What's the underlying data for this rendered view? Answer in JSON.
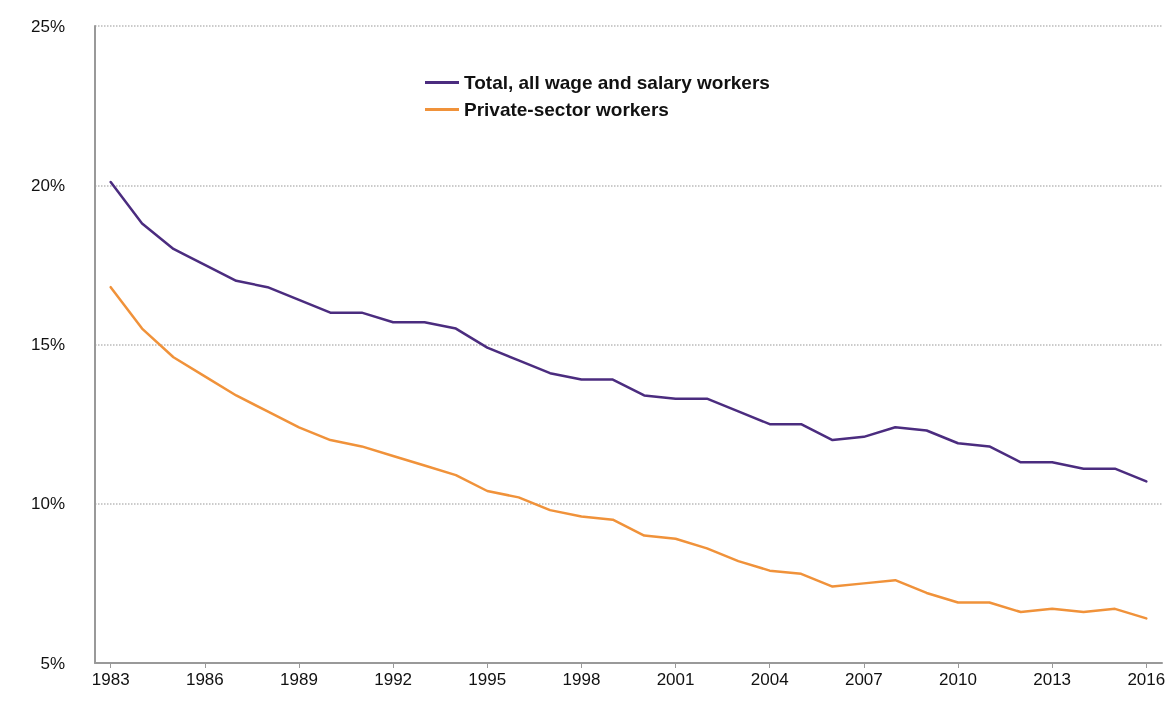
{
  "chart_data": {
    "type": "line",
    "x": [
      1983,
      1984,
      1985,
      1986,
      1987,
      1988,
      1989,
      1990,
      1991,
      1992,
      1993,
      1994,
      1995,
      1996,
      1997,
      1998,
      1999,
      2000,
      2001,
      2002,
      2003,
      2004,
      2005,
      2006,
      2007,
      2008,
      2009,
      2010,
      2011,
      2012,
      2013,
      2014,
      2015,
      2016
    ],
    "series": [
      {
        "name": "Total, all wage and salary workers",
        "color": "#4b2c7f",
        "values": [
          20.1,
          18.8,
          18.0,
          17.5,
          17.0,
          16.8,
          16.4,
          16.0,
          16.0,
          15.7,
          15.7,
          15.5,
          14.9,
          14.5,
          14.1,
          13.9,
          13.9,
          13.4,
          13.3,
          13.3,
          12.9,
          12.5,
          12.5,
          12.0,
          12.1,
          12.4,
          12.3,
          11.9,
          11.8,
          11.3,
          11.3,
          11.1,
          11.1,
          10.7
        ]
      },
      {
        "name": "Private-sector workers",
        "color": "#f0923a",
        "values": [
          16.8,
          15.5,
          14.6,
          14.0,
          13.4,
          12.9,
          12.4,
          12.0,
          11.8,
          11.5,
          11.2,
          10.9,
          10.4,
          10.2,
          9.8,
          9.6,
          9.5,
          9.0,
          8.9,
          8.6,
          8.2,
          7.9,
          7.8,
          7.4,
          7.5,
          7.6,
          7.2,
          6.9,
          6.9,
          6.6,
          6.7,
          6.6,
          6.7,
          6.4
        ]
      }
    ],
    "xlim": [
      1982.5,
      2016.5
    ],
    "xticks": [
      1983,
      1986,
      1989,
      1992,
      1995,
      1998,
      2001,
      2004,
      2007,
      2010,
      2013,
      2016
    ],
    "ylim": [
      5,
      25
    ],
    "yticks": [
      {
        "value": 5,
        "label": "5%"
      },
      {
        "value": 10,
        "label": "10%"
      },
      {
        "value": 15,
        "label": "15%"
      },
      {
        "value": 20,
        "label": "20%"
      },
      {
        "value": 25,
        "label": "25%"
      }
    ],
    "grid": "y",
    "legend": "top",
    "marker": "none",
    "line_style": "solid"
  }
}
